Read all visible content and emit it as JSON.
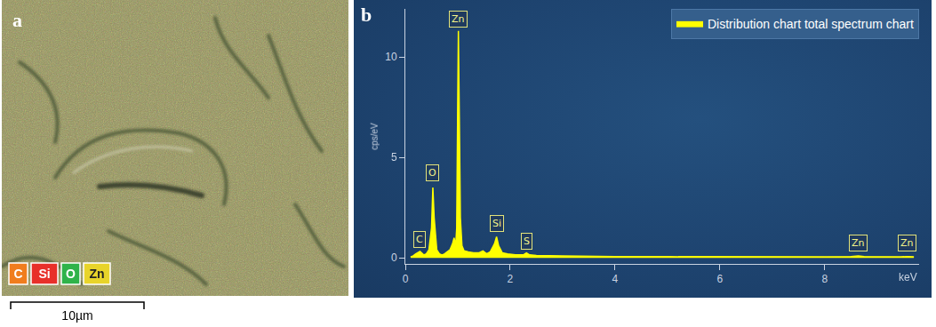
{
  "panel_a": {
    "label": "a",
    "elements": [
      {
        "symbol": "C",
        "color": "#f07d1e"
      },
      {
        "symbol": "Si",
        "color": "#e8302a"
      },
      {
        "symbol": "O",
        "color": "#2fb34a"
      },
      {
        "symbol": "Zn",
        "color": "#e8d42a"
      }
    ],
    "scale_bar": "10µm"
  },
  "chart_data": {
    "type": "area",
    "panel_label": "b",
    "x_label": "keV",
    "y_label": "cps/eV",
    "x": [
      0.1,
      0.15,
      0.2,
      0.25,
      0.28,
      0.31,
      0.35,
      0.4,
      0.45,
      0.5,
      0.525,
      0.55,
      0.6,
      0.65,
      0.7,
      0.75,
      0.8,
      0.85,
      0.9,
      0.93,
      0.96,
      0.98,
      1.0,
      1.012,
      1.03,
      1.05,
      1.08,
      1.12,
      1.2,
      1.3,
      1.4,
      1.48,
      1.55,
      1.62,
      1.7,
      1.74,
      1.78,
      1.85,
      1.95,
      2.1,
      2.25,
      2.31,
      2.37,
      2.5,
      3,
      3.5,
      4,
      5,
      6,
      7,
      8,
      8.5,
      8.64,
      8.75,
      9,
      9.45,
      9.57,
      9.7
    ],
    "series": [
      {
        "name": "Distribution chart total spectrum chart",
        "color": "#ffff00",
        "values": [
          0.05,
          0.1,
          0.2,
          0.28,
          0.32,
          0.25,
          0.15,
          0.2,
          0.4,
          1.5,
          3.5,
          2.0,
          0.4,
          0.2,
          0.15,
          0.2,
          0.3,
          0.4,
          0.7,
          1.0,
          0.6,
          1.5,
          8,
          11.3,
          7,
          2,
          0.6,
          0.35,
          0.3,
          0.25,
          0.25,
          0.35,
          0.2,
          0.3,
          0.7,
          1.05,
          0.6,
          0.25,
          0.2,
          0.15,
          0.15,
          0.25,
          0.15,
          0.12,
          0.1,
          0.08,
          0.07,
          0.06,
          0.05,
          0.05,
          0.05,
          0.06,
          0.1,
          0.06,
          0.05,
          0.05,
          0.07,
          0.05
        ]
      }
    ],
    "xlim": [
      0,
      9.8
    ],
    "ylim": [
      -0.3,
      12.4
    ],
    "xticks": [
      0,
      2,
      4,
      6,
      8
    ],
    "yticks": [
      0,
      5,
      10
    ],
    "grid": false,
    "legend": "top-right",
    "annotations": [
      {
        "text": "C",
        "x": 0.277,
        "y": 0.5
      },
      {
        "text": "O",
        "x": 0.525,
        "y": 3.8
      },
      {
        "text": "Zn",
        "x": 1.012,
        "y": 11.45
      },
      {
        "text": "Si",
        "x": 1.74,
        "y": 1.3
      },
      {
        "text": "S",
        "x": 2.31,
        "y": 0.4
      },
      {
        "text": "Zn",
        "x": 8.64,
        "y": 0.3
      },
      {
        "text": "Zn",
        "x": 9.57,
        "y": 0.3
      }
    ]
  }
}
